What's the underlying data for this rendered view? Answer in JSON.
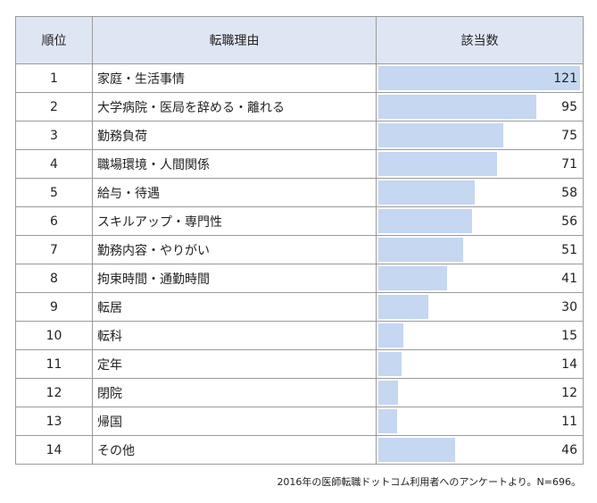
{
  "table": {
    "headers": {
      "rank": "順位",
      "reason": "転職理由",
      "count": "該当数"
    }
  },
  "chart_data": {
    "type": "bar",
    "orientation": "horizontal",
    "title": "",
    "xlabel": "",
    "ylabel": "",
    "xlim": [
      0,
      121
    ],
    "grid": false,
    "legend": "none",
    "bar_color": "#c5d7f1",
    "header_color": "#dfe6f3",
    "ranks": [
      "1",
      "2",
      "3",
      "4",
      "5",
      "6",
      "7",
      "8",
      "9",
      "10",
      "11",
      "12",
      "13",
      "14"
    ],
    "categories": [
      "家庭・生活事情",
      "大学病院・医局を辞める・離れる",
      "勤務負荷",
      "職場環境・人間関係",
      "給与・待遇",
      "スキルアップ・専門性",
      "勤務内容・やりがい",
      "拘束時間・通勤時間",
      "転居",
      "転科",
      "定年",
      "閉院",
      "帰国",
      "その他"
    ],
    "values": [
      121,
      95,
      75,
      71,
      58,
      56,
      51,
      41,
      30,
      15,
      14,
      12,
      11,
      46
    ]
  },
  "footnote": "2016年の医師転職ドットコム利用者へのアンケートより。N=696。"
}
